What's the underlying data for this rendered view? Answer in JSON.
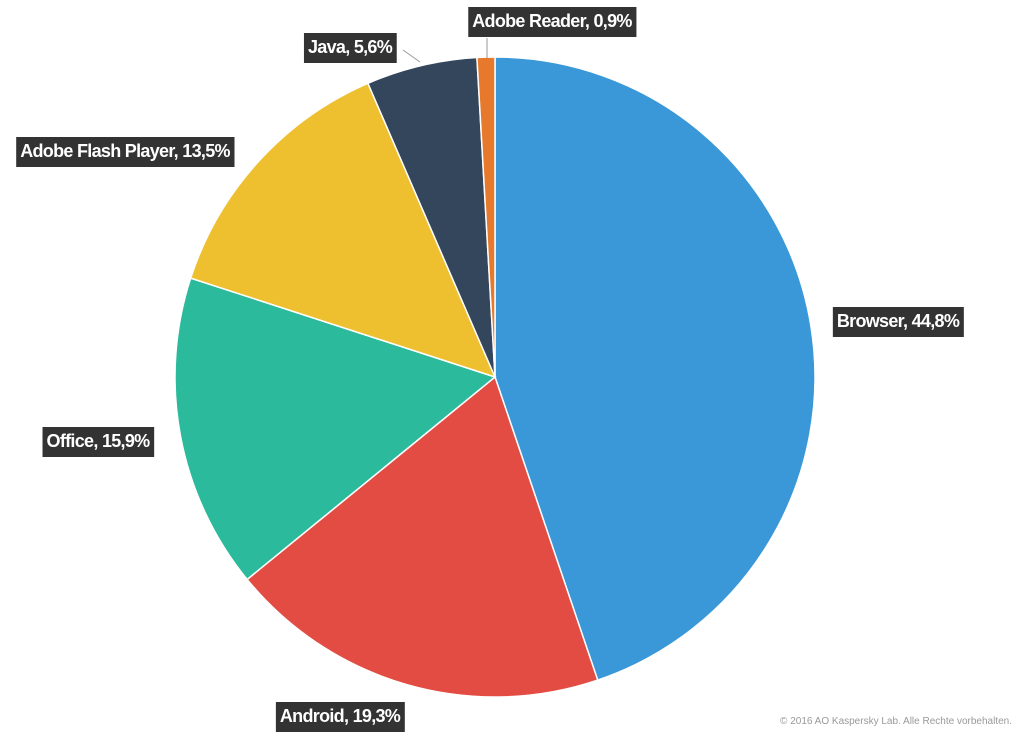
{
  "chart_data": {
    "type": "pie",
    "categories": [
      "Browser",
      "Android",
      "Office",
      "Adobe Flash Player",
      "Java",
      "Adobe Reader"
    ],
    "values": [
      44.8,
      19.3,
      15.9,
      13.5,
      5.6,
      0.9
    ],
    "value_labels": [
      "44,8%",
      "19,3%",
      "15,9%",
      "13,5%",
      "5,6%",
      "0,9%"
    ],
    "label_separator": ", ",
    "colors": [
      "#3a98d8",
      "#e24c42",
      "#2bba9b",
      "#eec02f",
      "#33465c",
      "#e6792b"
    ],
    "credit": "© 2016 AO Kaspersky Lab. Alle Rechte vorbehalten."
  }
}
